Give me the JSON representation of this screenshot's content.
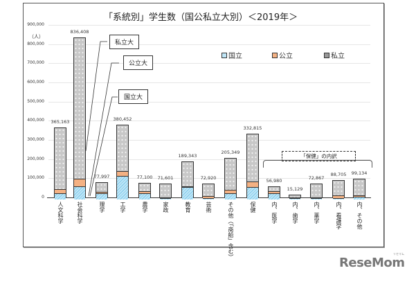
{
  "chart_data": {
    "type": "bar",
    "stacked": true,
    "title": "「系統別」学生数（国公私立大別）＜2019年＞",
    "xlabel": "",
    "ylabel": "（人）",
    "ylim": [
      0,
      900000
    ],
    "yticks": [
      "0",
      "100,000",
      "200,000",
      "300,000",
      "400,000",
      "500,000",
      "600,000",
      "700,000",
      "800,000",
      "900,000"
    ],
    "grid": true,
    "legend_position": "top-right",
    "categories": [
      "人文科学",
      "社会科学",
      "理学",
      "工学",
      "農学",
      "家政",
      "教育",
      "芸術",
      "その他（「商船」含む）",
      "保健",
      "内、医学",
      "内、歯学",
      "内、薬学",
      "内、看護学",
      "内、その他"
    ],
    "totals": [
      365163,
      836408,
      77997,
      380452,
      77100,
      71601,
      189343,
      72920,
      205349,
      332815,
      56980,
      15129,
      72867,
      88705,
      99134
    ],
    "total_labels": [
      "365,163",
      "836,408",
      "77,997",
      "380,452",
      "77,100",
      "71,601",
      "189,343",
      "72,920",
      "205,349",
      "332,815",
      "56,980",
      "15,129",
      "72,867",
      "88,705",
      "99,134"
    ],
    "series": [
      {
        "name": "国立",
        "color": "#9dd7f0",
        "values": [
          30000,
          65000,
          30000,
          120000,
          30000,
          3000,
          60000,
          4000,
          30000,
          60000,
          30000,
          2000,
          3000,
          3000,
          10000
        ]
      },
      {
        "name": "公立",
        "color": "#f4b183",
        "values": [
          18000,
          38000,
          3000,
          20000,
          5000,
          2000,
          3000,
          6000,
          12000,
          25000,
          6000,
          500,
          2000,
          13000,
          4000
        ]
      },
      {
        "name": "私立",
        "color": "#c0c0c0",
        "values": [
          317163,
          733408,
          44997,
          240452,
          42100,
          66601,
          126343,
          62920,
          163349,
          247815,
          20980,
          12629,
          67867,
          72705,
          85134
        ]
      }
    ],
    "annotations": [
      "私立大",
      "公立大",
      "国立大",
      "「保健」の内訳"
    ]
  },
  "labels": {
    "title": "「系統別」学生数（国公私立大別）＜2019年＞",
    "unit": "（人）",
    "legend": [
      "国立",
      "公立",
      "私立"
    ],
    "callouts": {
      "private": "私立大",
      "public": "公立大",
      "national": "国立大"
    },
    "breakdown": "「保健」の内訳",
    "logo": "ReseMom",
    "logo_kana": "リセマム"
  }
}
